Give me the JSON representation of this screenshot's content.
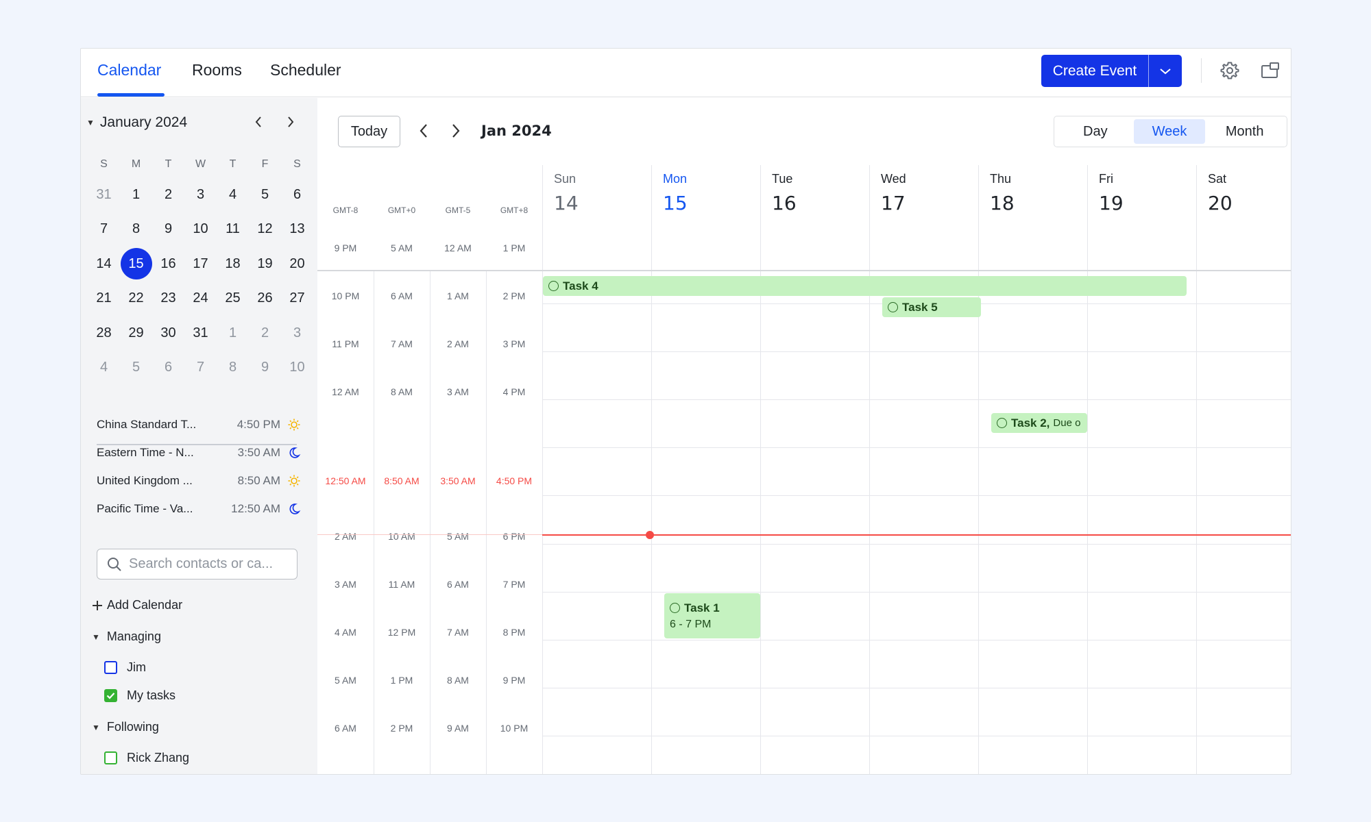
{
  "tabs": [
    {
      "label": "Calendar",
      "active": true
    },
    {
      "label": "Rooms"
    },
    {
      "label": "Scheduler"
    }
  ],
  "toolbar": {
    "create_label": "Create Event"
  },
  "icons": {
    "settings": "gear-icon",
    "window": "open-window-icon",
    "dropdown": "chevron-down-icon"
  },
  "colors": {
    "accent": "#1434e6",
    "event_bg": "#c5f2c0",
    "now_line": "#f54a45"
  },
  "mini_calendar": {
    "title": "January 2024",
    "weekdays": [
      "S",
      "M",
      "T",
      "W",
      "T",
      "F",
      "S"
    ],
    "weeks": [
      [
        "31",
        "1",
        "2",
        "3",
        "4",
        "5",
        "6"
      ],
      [
        "7",
        "8",
        "9",
        "10",
        "11",
        "12",
        "13"
      ],
      [
        "14",
        "15",
        "16",
        "17",
        "18",
        "19",
        "20"
      ],
      [
        "21",
        "22",
        "23",
        "24",
        "25",
        "26",
        "27"
      ],
      [
        "28",
        "29",
        "30",
        "31",
        "1",
        "2",
        "3"
      ],
      [
        "4",
        "5",
        "6",
        "7",
        "8",
        "9",
        "10"
      ]
    ],
    "selected": "15"
  },
  "timezones": [
    {
      "name": "China Standard T...",
      "time": "4:50 PM",
      "icon": "sun-icon"
    },
    {
      "name": "Eastern Time - N...",
      "time": "3:50 AM",
      "icon": "moon-icon"
    },
    {
      "name": "United Kingdom ...",
      "time": "8:50 AM",
      "icon": "sun-icon"
    },
    {
      "name": "Pacific Time - Va...",
      "time": "12:50 AM",
      "icon": "moon-icon"
    }
  ],
  "search": {
    "placeholder": "Search contacts or ca..."
  },
  "sidebar": {
    "add_calendar": "Add Calendar",
    "managing_label": "Managing",
    "managing": [
      {
        "name": "Jim",
        "checked": false,
        "color": "#1434e6"
      },
      {
        "name": "My tasks",
        "checked": true,
        "color": "#34b233"
      }
    ],
    "following_label": "Following",
    "following": [
      {
        "name": "Rick Zhang",
        "checked": false,
        "color": "#34b233"
      }
    ]
  },
  "calendar": {
    "today_label": "Today",
    "current_range": "Jan 2024",
    "views": [
      {
        "label": "Day"
      },
      {
        "label": "Week",
        "active": true
      },
      {
        "label": "Month"
      }
    ],
    "timezone_labels": [
      "GMT-8",
      "GMT+0",
      "GMT-5",
      "GMT+8"
    ],
    "days": [
      {
        "name": "Sun",
        "num": "14"
      },
      {
        "name": "Mon",
        "num": "15"
      },
      {
        "name": "Tue",
        "num": "16"
      },
      {
        "name": "Wed",
        "num": "17"
      },
      {
        "name": "Thu",
        "num": "18"
      },
      {
        "name": "Fri",
        "num": "19"
      },
      {
        "name": "Sat",
        "num": "20"
      }
    ],
    "time_rows": [
      [
        "9 PM",
        "5 AM",
        "12 AM",
        "1 PM"
      ],
      [
        "10 PM",
        "6 AM",
        "1 AM",
        "2 PM"
      ],
      [
        "11 PM",
        "7 AM",
        "2 AM",
        "3 PM"
      ],
      [
        "12 AM",
        "8 AM",
        "3 AM",
        "4 PM"
      ],
      [
        "12:50 AM",
        "8:50 AM",
        "3:50 AM",
        "4:50 PM"
      ],
      [
        "2 AM",
        "10 AM",
        "5 AM",
        "6 PM"
      ],
      [
        "3 AM",
        "11 AM",
        "6 AM",
        "7 PM"
      ],
      [
        "4 AM",
        "12 PM",
        "7 AM",
        "8 PM"
      ],
      [
        "5 AM",
        "1 PM",
        "8 AM",
        "9 PM"
      ],
      [
        "6 AM",
        "2 PM",
        "9 AM",
        "10 PM"
      ]
    ],
    "events": {
      "task4": {
        "title": "Task 4"
      },
      "task5": {
        "title": "Task 5"
      },
      "task2": {
        "title": "Task 2,",
        "sub": "Due o"
      },
      "task1": {
        "title": "Task 1",
        "sub": "6 - 7 PM"
      }
    }
  }
}
